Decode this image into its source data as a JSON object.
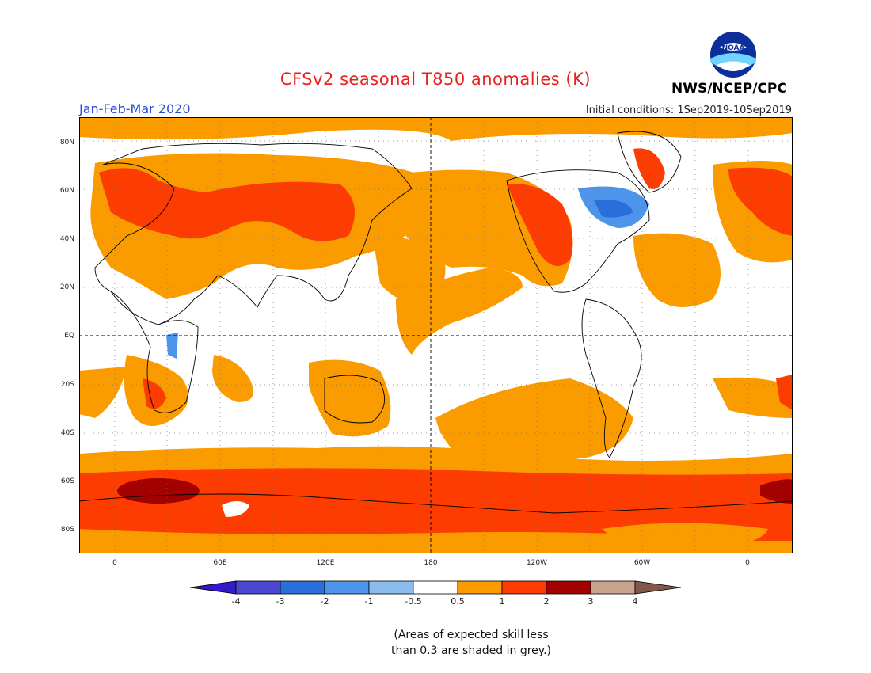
{
  "header": {
    "title": "CFSv2 seasonal T850 anomalies (K)",
    "period": "Jan-Feb-Mar 2020",
    "initial_conditions": "Initial conditions: 1Sep2019-10Sep2019",
    "agency": "NWS/NCEP/CPC",
    "logo_text": "NOAA"
  },
  "map": {
    "lat_labels": [
      "80N",
      "60N",
      "40N",
      "20N",
      "EQ",
      "20S",
      "40S",
      "60S",
      "80S"
    ],
    "lon_labels": [
      "0",
      "60E",
      "120E",
      "180",
      "120W",
      "60W",
      "0"
    ]
  },
  "colorbar": {
    "labels": [
      "-4",
      "-3",
      "-2",
      "-1",
      "-0.5",
      "0.5",
      "1",
      "2",
      "3",
      "4"
    ],
    "colors": [
      "#3319c8",
      "#4c46d3",
      "#2a6ed9",
      "#4c95ea",
      "#8bbcf0",
      "#ffffff",
      "#fa9b00",
      "#fc3c00",
      "#a30000",
      "#c9a28e",
      "#80584c"
    ]
  },
  "note": {
    "line1": "(Areas of expected skill less",
    "line2": "than 0.3 are shaded in grey.)"
  }
}
